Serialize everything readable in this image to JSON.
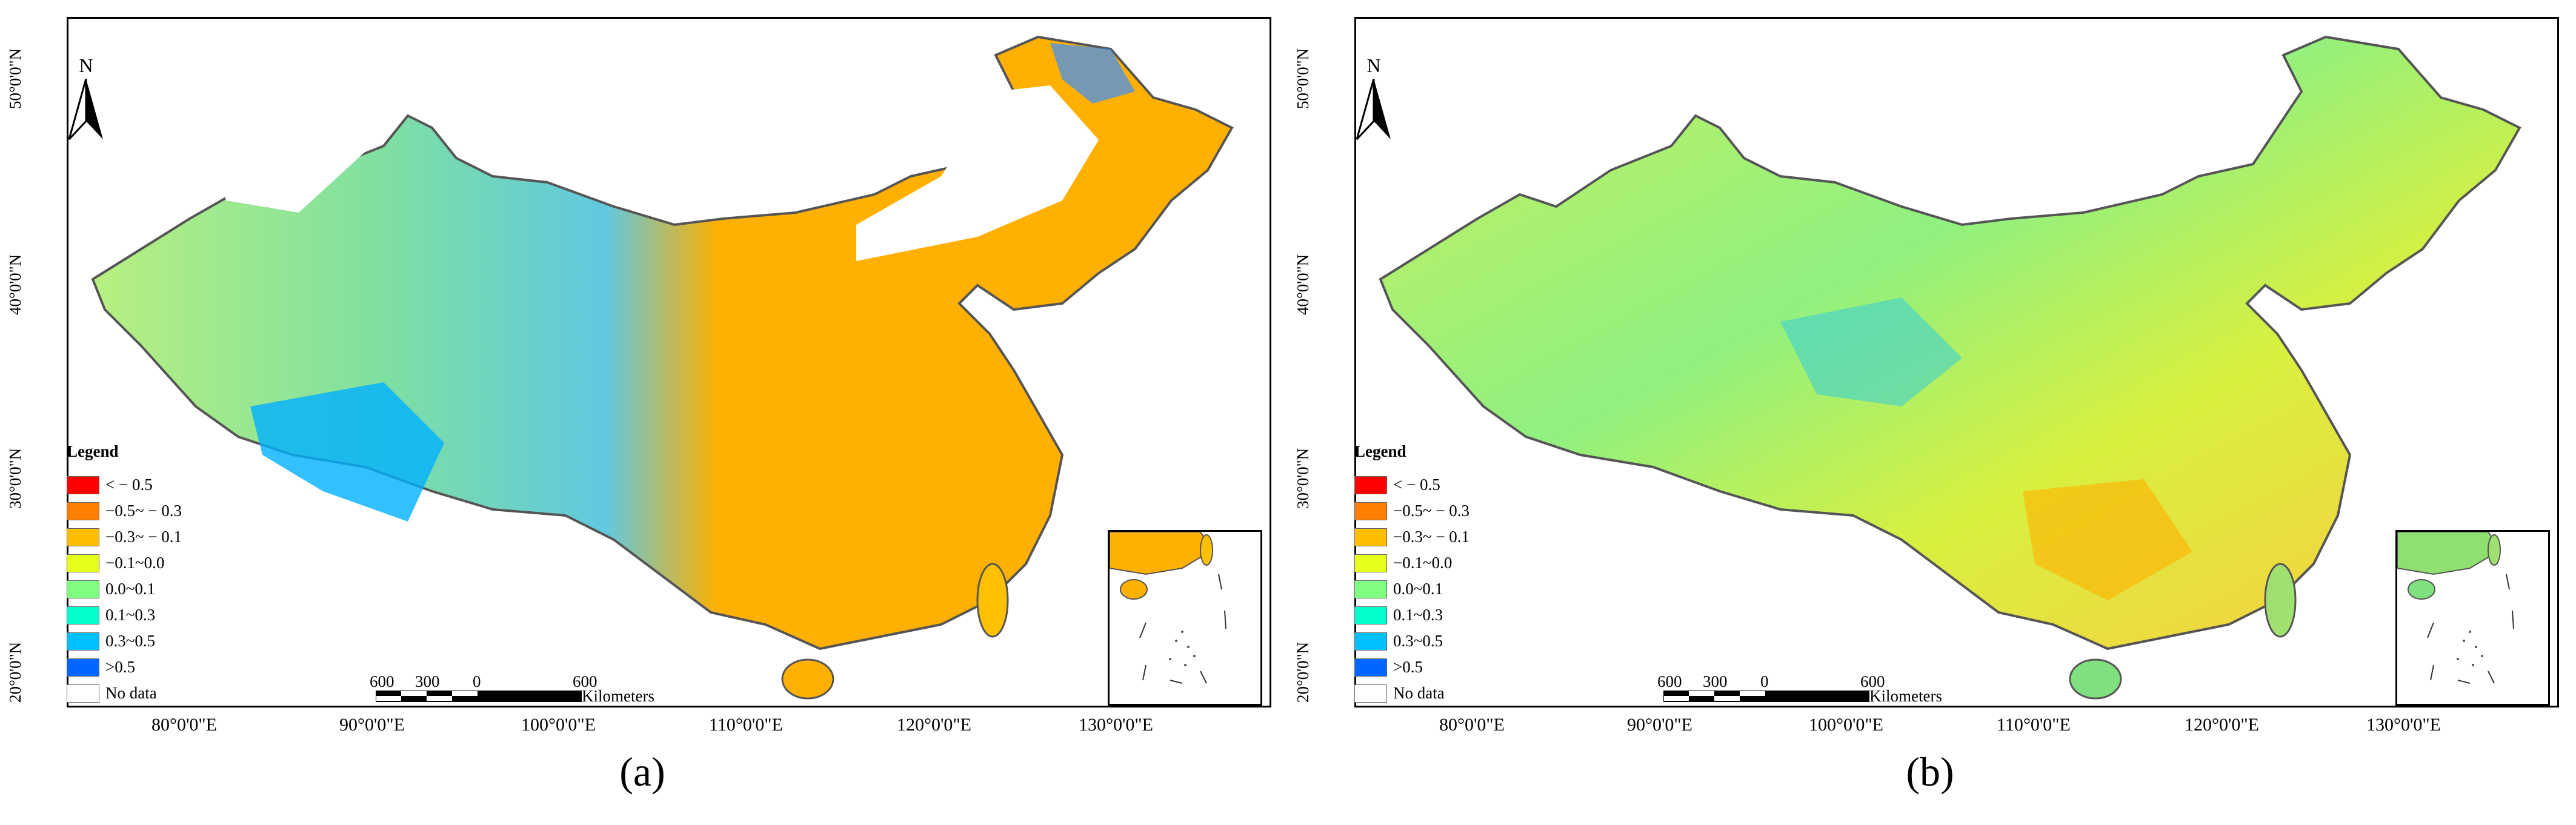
{
  "panels": [
    {
      "id": "a",
      "caption": "(a)",
      "dominant_colors": [
        "#ff7f00",
        "#ffbf00",
        "#80ff80",
        "#00bfff",
        "#e5ff1a"
      ]
    },
    {
      "id": "b",
      "caption": "(b)",
      "dominant_colors": [
        "#80ff80",
        "#e5ff1a",
        "#ffbf00",
        "#00bfff",
        "#80ff80"
      ]
    }
  ],
  "map": {
    "north_label": "N",
    "lat_ticks": [
      "50°0'0\"N",
      "40°0'0\"N",
      "30°0'0\"N",
      "20°0'0\"N"
    ],
    "lon_ticks": [
      "80°0'0\"E",
      "90°0'0\"E",
      "100°0'0\"E",
      "110°0'0\"E",
      "120°0'0\"E",
      "130°0'0\"E"
    ],
    "scale": {
      "labels": [
        "600",
        "300",
        "0",
        "600"
      ],
      "units": "Kilometers"
    },
    "legend": {
      "title": "Legend",
      "items": [
        {
          "label": "< − 0.5",
          "color": "#ff0000"
        },
        {
          "label": "−0.5~ − 0.3",
          "color": "#ff7f00"
        },
        {
          "label": "−0.3~ − 0.1",
          "color": "#ffbf00"
        },
        {
          "label": "−0.1~0.0",
          "color": "#e5ff1a"
        },
        {
          "label": "0.0~0.1",
          "color": "#80ff80"
        },
        {
          "label": "0.1~0.3",
          "color": "#00ffcc"
        },
        {
          "label": "0.3~0.5",
          "color": "#00bfff"
        },
        {
          "label": ">0.5",
          "color": "#0066ff"
        },
        {
          "label": "No data",
          "color": "#ffffff"
        }
      ]
    }
  }
}
